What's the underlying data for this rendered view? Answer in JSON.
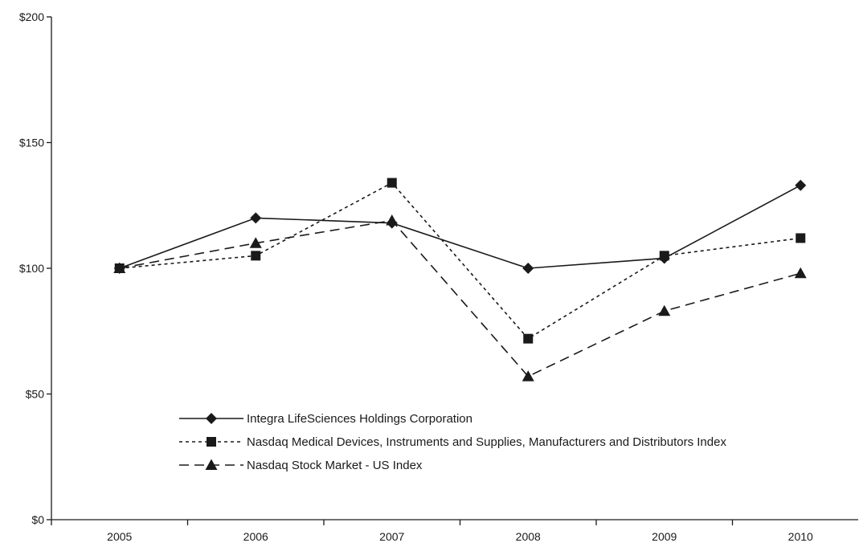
{
  "chart_data": {
    "type": "line",
    "title": "",
    "xlabel": "",
    "ylabel": "",
    "x": [
      "2005",
      "2006",
      "2007",
      "2008",
      "2009",
      "2010"
    ],
    "ylim": [
      0,
      200
    ],
    "yticks": [
      0,
      50,
      100,
      150,
      200
    ],
    "ytick_labels": [
      "$0",
      "$50",
      "$100",
      "$150",
      "$200"
    ],
    "grid": false,
    "legend_position": "bottom-left",
    "series": [
      {
        "name": "Integra LifeSciences Holdings Corporation",
        "values": [
          100,
          120,
          118,
          100,
          104,
          133
        ],
        "marker": "diamond",
        "line_style": "solid"
      },
      {
        "name": "Nasdaq Medical Devices, Instruments and Supplies, Manufacturers and Distributors Index",
        "values": [
          100,
          105,
          134,
          72,
          105,
          112
        ],
        "marker": "square",
        "line_style": "dotted"
      },
      {
        "name": "Nasdaq Stock Market - US Index",
        "values": [
          100,
          110,
          119,
          57,
          83,
          98
        ],
        "marker": "triangle",
        "line_style": "dashed"
      }
    ],
    "colors": {
      "line": "#1a1a1a",
      "axis": "#1a1a1a"
    }
  }
}
